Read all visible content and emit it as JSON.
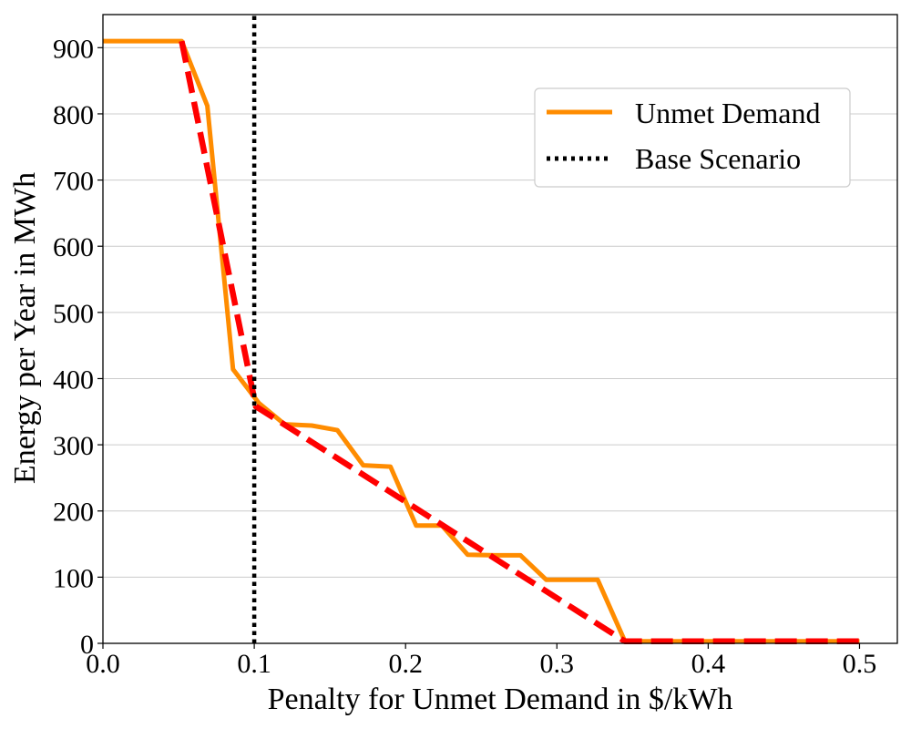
{
  "chart_data": {
    "type": "line",
    "title": "",
    "xlabel": "Penalty for Unmet Demand in $/kWh",
    "ylabel": "Energy per Year in MWh",
    "xlim": [
      0.0,
      0.525
    ],
    "ylim": [
      0,
      950
    ],
    "xticks": [
      0.0,
      0.1,
      0.2,
      0.3,
      0.4,
      0.5
    ],
    "xtick_labels": [
      "0.0",
      "0.1",
      "0.2",
      "0.3",
      "0.4",
      "0.5"
    ],
    "yticks": [
      0,
      100,
      200,
      300,
      400,
      500,
      600,
      700,
      800,
      900
    ],
    "ytick_labels": [
      "0",
      "100",
      "200",
      "300",
      "400",
      "500",
      "600",
      "700",
      "800",
      "900"
    ],
    "grid": "horizontal",
    "legend_position": "upper-right",
    "series": [
      {
        "name": "Unmet Demand",
        "color": "#ff8c00",
        "style": "solid",
        "x": [
          0.0,
          0.052,
          0.069,
          0.086,
          0.103,
          0.12,
          0.138,
          0.155,
          0.172,
          0.19,
          0.207,
          0.224,
          0.241,
          0.259,
          0.276,
          0.293,
          0.31,
          0.327,
          0.345,
          0.362,
          0.5
        ],
        "y": [
          910,
          910,
          812,
          414,
          363,
          331,
          329,
          322,
          269,
          267,
          178,
          178,
          134,
          133,
          133,
          96,
          96,
          96,
          3,
          3,
          3
        ]
      },
      {
        "name": "",
        "color": "#ff0000",
        "style": "dashed",
        "x": [
          0.052,
          0.101,
          0.345,
          0.5
        ],
        "y": [
          910,
          358,
          3,
          3
        ]
      },
      {
        "name": "Base Scenario",
        "color": "#000000",
        "style": "dotted",
        "x": [
          0.1,
          0.1
        ],
        "y": [
          0,
          950
        ]
      }
    ],
    "legend": [
      {
        "label": "Unmet Demand",
        "color": "#ff8c00",
        "style": "solid"
      },
      {
        "label": "Base Scenario",
        "color": "#000000",
        "style": "dotted"
      }
    ]
  }
}
